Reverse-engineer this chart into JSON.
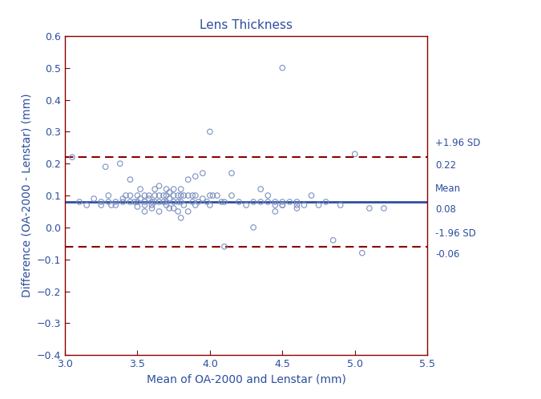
{
  "title": "Lens Thickness",
  "xlabel": "Mean of OA-2000 and Lenstar (mm)",
  "ylabel": "Difference (OA-2000 - Lenstar) (mm)",
  "mean_line": 0.08,
  "upper_sd_line": 0.22,
  "lower_sd_line": -0.06,
  "xlim": [
    3.0,
    5.5
  ],
  "ylim": [
    -0.4,
    0.6
  ],
  "xticks": [
    3.0,
    3.5,
    4.0,
    4.5,
    5.0,
    5.5
  ],
  "yticks": [
    -0.4,
    -0.3,
    -0.2,
    -0.1,
    0.0,
    0.1,
    0.2,
    0.3,
    0.4,
    0.5,
    0.6
  ],
  "line_color_mean": "#2d4e9e",
  "line_color_sd": "#8b0000",
  "scatter_facecolor": "none",
  "scatter_edgecolor": "#7b8fc0",
  "axis_color": "#8b0000",
  "title_color": "#2d4e9e",
  "label_color": "#2d4e9e",
  "tick_label_color": "#2d4e9e",
  "annot_color": "#2d4e9e",
  "scatter_x": [
    3.05,
    3.1,
    3.15,
    3.2,
    3.25,
    3.25,
    3.28,
    3.3,
    3.3,
    3.32,
    3.35,
    3.35,
    3.38,
    3.4,
    3.4,
    3.42,
    3.45,
    3.45,
    3.45,
    3.48,
    3.5,
    3.5,
    3.5,
    3.52,
    3.52,
    3.55,
    3.55,
    3.55,
    3.55,
    3.58,
    3.58,
    3.6,
    3.6,
    3.6,
    3.62,
    3.62,
    3.62,
    3.65,
    3.65,
    3.65,
    3.65,
    3.68,
    3.68,
    3.7,
    3.7,
    3.7,
    3.7,
    3.72,
    3.72,
    3.72,
    3.75,
    3.75,
    3.75,
    3.75,
    3.78,
    3.78,
    3.78,
    3.8,
    3.8,
    3.8,
    3.8,
    3.82,
    3.82,
    3.85,
    3.85,
    3.85,
    3.88,
    3.88,
    3.9,
    3.9,
    3.9,
    3.92,
    3.95,
    3.95,
    3.98,
    4.0,
    4.0,
    4.0,
    4.02,
    4.05,
    4.08,
    4.1,
    4.1,
    4.15,
    4.15,
    4.2,
    4.25,
    4.3,
    4.3,
    4.35,
    4.35,
    4.4,
    4.4,
    4.45,
    4.45,
    4.45,
    4.5,
    4.5,
    4.5,
    4.5,
    4.55,
    4.6,
    4.6,
    4.6,
    4.65,
    4.7,
    4.75,
    4.8,
    4.85,
    4.9,
    5.0,
    5.05,
    5.1,
    5.2
  ],
  "scatter_y": [
    0.22,
    0.08,
    0.07,
    0.09,
    0.08,
    0.07,
    0.19,
    0.08,
    0.1,
    0.07,
    0.07,
    0.08,
    0.2,
    0.08,
    0.09,
    0.1,
    0.15,
    0.1,
    0.08,
    0.08,
    0.1,
    0.08,
    0.065,
    0.12,
    0.09,
    0.1,
    0.08,
    0.07,
    0.05,
    0.1,
    0.09,
    0.08,
    0.07,
    0.06,
    0.12,
    0.1,
    0.08,
    0.13,
    0.1,
    0.08,
    0.05,
    0.1,
    0.08,
    0.12,
    0.1,
    0.08,
    0.07,
    0.11,
    0.09,
    0.06,
    0.12,
    0.1,
    0.08,
    0.06,
    0.1,
    0.08,
    0.05,
    0.12,
    0.1,
    0.08,
    0.03,
    0.1,
    0.07,
    0.15,
    0.1,
    0.05,
    0.1,
    0.08,
    0.16,
    0.1,
    0.07,
    0.08,
    0.17,
    0.09,
    0.08,
    0.3,
    0.1,
    0.07,
    0.1,
    0.1,
    0.08,
    0.08,
    -0.06,
    0.17,
    0.1,
    0.08,
    0.07,
    0.0,
    0.08,
    0.12,
    0.08,
    0.1,
    0.08,
    0.07,
    0.08,
    0.05,
    0.5,
    0.08,
    0.07,
    0.07,
    0.08,
    0.07,
    0.06,
    0.08,
    0.07,
    0.1,
    0.07,
    0.08,
    -0.04,
    0.07,
    0.23,
    -0.08,
    0.06,
    0.06
  ],
  "annot_upper_sd_label": "+1.96 SD",
  "annot_upper_sd_val": "0.22",
  "annot_mean_label": "Mean",
  "annot_mean_val": "0.08",
  "annot_lower_sd_label": "-1.96 SD",
  "annot_lower_sd_val": "-0.06",
  "figsize": [
    6.75,
    4.98
  ],
  "dpi": 100
}
